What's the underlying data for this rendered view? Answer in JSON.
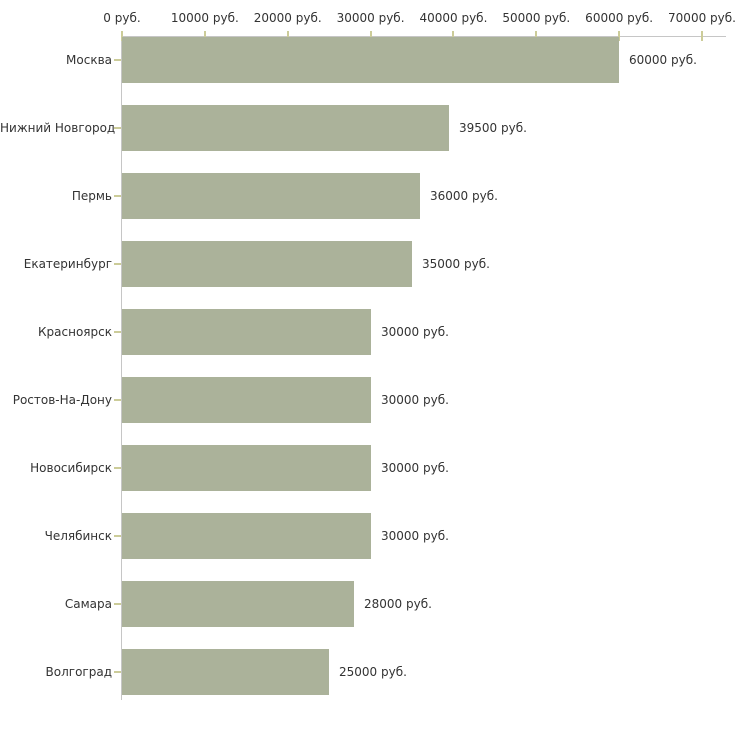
{
  "chart_data": {
    "type": "bar",
    "orientation": "horizontal",
    "title": "",
    "xlabel": "",
    "ylabel": "",
    "unit": "руб.",
    "grid": false,
    "legend": "none",
    "xlim": [
      0,
      70000
    ],
    "categories": [
      "Москва",
      "Нижний Новгород",
      "Пермь",
      "Екатеринбург",
      "Красноярск",
      "Ростов-На-Дону",
      "Новосибирск",
      "Челябинск",
      "Самара",
      "Волгоград"
    ],
    "values": [
      60000,
      39500,
      36000,
      35000,
      30000,
      30000,
      30000,
      30000,
      28000,
      25000
    ],
    "value_labels": [
      "60000 руб.",
      "39500 руб.",
      "36000 руб.",
      "35000 руб.",
      "30000 руб.",
      "30000 руб.",
      "30000 руб.",
      "30000 руб.",
      "28000 руб.",
      "25000 руб."
    ],
    "x_ticks": [
      {
        "value": 0,
        "label": "0 руб."
      },
      {
        "value": 10000,
        "label": "10000 руб."
      },
      {
        "value": 20000,
        "label": "20000 руб."
      },
      {
        "value": 30000,
        "label": "30000 руб."
      },
      {
        "value": 40000,
        "label": "40000 руб."
      },
      {
        "value": 50000,
        "label": "50000 руб."
      },
      {
        "value": 60000,
        "label": "60000 руб."
      },
      {
        "value": 70000,
        "label": "70000 руб."
      }
    ],
    "colors": {
      "bar": "#abb29a",
      "axis": "#c6c6c6",
      "tick": "#cccc99",
      "text": "#333333",
      "background": "#ffffff"
    }
  }
}
